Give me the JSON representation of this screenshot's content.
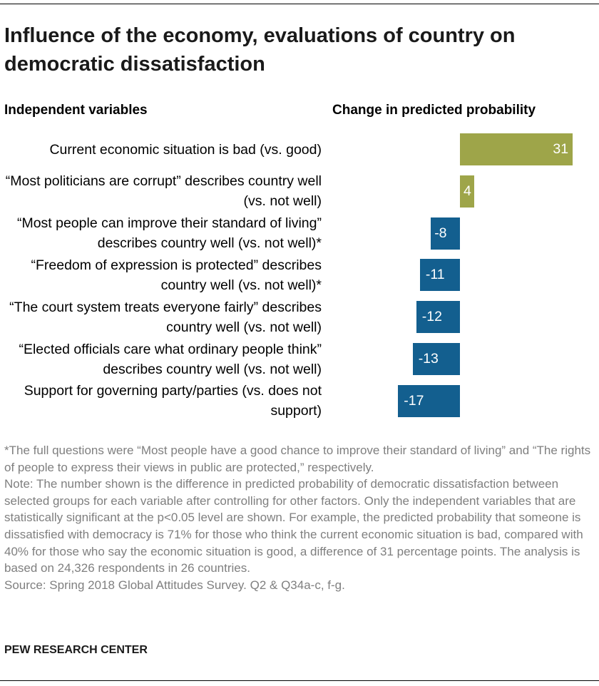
{
  "chart_data": {
    "type": "bar",
    "orientation": "horizontal",
    "title": "Influence of the economy, evaluations of country on democratic dissatisfaction",
    "category_header": "Independent variables",
    "value_header": "Change in predicted probability",
    "categories": [
      "Current economic situation is bad (vs. good)",
      "“Most politicians are corrupt” describes country well (vs. not well)",
      "“Most people can improve their standard of living” describes country well (vs. not well)*",
      "“Freedom of expression is protected” describes country well (vs. not well)*",
      "“The court system treats everyone fairly” describes country well (vs. not well)",
      "“Elected officials care what ordinary people think” describes country well (vs. not well)",
      "Support for governing party/parties (vs. does not support)"
    ],
    "values": [
      31,
      4,
      -8,
      -11,
      -12,
      -13,
      -17
    ],
    "colors": [
      "#9ea549",
      "#9ea549",
      "#135f8f",
      "#135f8f",
      "#135f8f",
      "#135f8f",
      "#135f8f"
    ],
    "notes": [
      "*The full questions were “Most people have a good chance to improve their standard of living” and “The rights of people to express their views in public are protected,” respectively.",
      "Note: The number shown is the difference in predicted probability of democratic dissatisfaction between selected groups for each variable after controlling for other factors. Only the independent variables that are statistically significant at the p<0.05 level are shown. For example, the predicted probability that someone is dissatisfied with democracy is 71% for those who think the current economic situation is bad, compared with 40% for those who say the economic situation is good, a difference of 31 percentage points. The analysis is based on 24,326 respondents in 26 countries.",
      "Source: Spring 2018 Global Attitudes Survey. Q2 & Q34a-c, f-g."
    ],
    "credit": "PEW RESEARCH CENTER"
  }
}
